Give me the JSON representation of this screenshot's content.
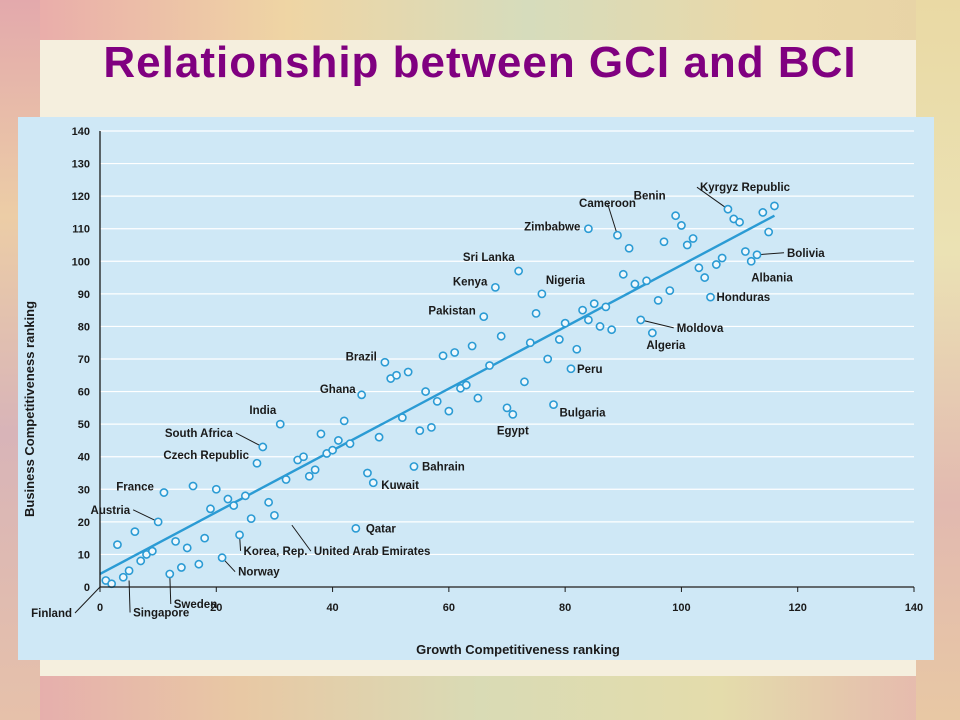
{
  "page": {
    "title": "Relationship between GCI and BCI"
  },
  "colors": {
    "title": "#800080",
    "plot_background": "#cfe8f6",
    "gridline": "#ffffff",
    "marker": "#2b9bd4",
    "trendline": "#2b9bd4",
    "text": "#1a1a1a"
  },
  "chart_data": {
    "type": "scatter",
    "title": "",
    "xlabel": "Growth Competitiveness ranking",
    "ylabel": "Business Competitiveness ranking",
    "xlim": [
      0,
      140
    ],
    "ylim": [
      0,
      140
    ],
    "xticks": [
      0,
      20,
      40,
      60,
      80,
      100,
      120,
      140
    ],
    "yticks": [
      0,
      10,
      20,
      30,
      40,
      50,
      60,
      70,
      80,
      90,
      100,
      110,
      120,
      130,
      140
    ],
    "grid": "horizontal",
    "legend": "none",
    "trendline": {
      "x": [
        0,
        116
      ],
      "y": [
        4,
        114
      ]
    },
    "points": [
      [
        1,
        2
      ],
      [
        2,
        1
      ],
      [
        3,
        13
      ],
      [
        4,
        3
      ],
      [
        5,
        5
      ],
      [
        6,
        17
      ],
      [
        7,
        8
      ],
      [
        8,
        10
      ],
      [
        9,
        11
      ],
      [
        10,
        20
      ],
      [
        11,
        29
      ],
      [
        12,
        4
      ],
      [
        13,
        14
      ],
      [
        14,
        6
      ],
      [
        15,
        12
      ],
      [
        16,
        31
      ],
      [
        17,
        7
      ],
      [
        18,
        15
      ],
      [
        19,
        24
      ],
      [
        20,
        30
      ],
      [
        21,
        9
      ],
      [
        22,
        27
      ],
      [
        23,
        25
      ],
      [
        24,
        16
      ],
      [
        25,
        28
      ],
      [
        26,
        21
      ],
      [
        27,
        38
      ],
      [
        28,
        43
      ],
      [
        29,
        26
      ],
      [
        30,
        22
      ],
      [
        31,
        50
      ],
      [
        32,
        33
      ],
      [
        34,
        39
      ],
      [
        35,
        40
      ],
      [
        36,
        34
      ],
      [
        37,
        36
      ],
      [
        38,
        47
      ],
      [
        39,
        41
      ],
      [
        40,
        42
      ],
      [
        41,
        45
      ],
      [
        42,
        51
      ],
      [
        43,
        44
      ],
      [
        44,
        18
      ],
      [
        45,
        59
      ],
      [
        46,
        35
      ],
      [
        47,
        32
      ],
      [
        48,
        46
      ],
      [
        49,
        69
      ],
      [
        50,
        64
      ],
      [
        51,
        65
      ],
      [
        52,
        52
      ],
      [
        53,
        66
      ],
      [
        54,
        37
      ],
      [
        55,
        48
      ],
      [
        56,
        60
      ],
      [
        57,
        49
      ],
      [
        58,
        57
      ],
      [
        59,
        71
      ],
      [
        60,
        54
      ],
      [
        61,
        72
      ],
      [
        62,
        61
      ],
      [
        63,
        62
      ],
      [
        64,
        74
      ],
      [
        65,
        58
      ],
      [
        66,
        83
      ],
      [
        67,
        68
      ],
      [
        68,
        92
      ],
      [
        69,
        77
      ],
      [
        70,
        55
      ],
      [
        71,
        53
      ],
      [
        72,
        97
      ],
      [
        73,
        63
      ],
      [
        74,
        75
      ],
      [
        75,
        84
      ],
      [
        76,
        90
      ],
      [
        77,
        70
      ],
      [
        78,
        56
      ],
      [
        79,
        76
      ],
      [
        80,
        81
      ],
      [
        81,
        67
      ],
      [
        82,
        73
      ],
      [
        83,
        85
      ],
      [
        84,
        82
      ],
      [
        85,
        87
      ],
      [
        86,
        80
      ],
      [
        87,
        86
      ],
      [
        88,
        79
      ],
      [
        89,
        108
      ],
      [
        90,
        96
      ],
      [
        91,
        104
      ],
      [
        92,
        93
      ],
      [
        93,
        82
      ],
      [
        94,
        94
      ],
      [
        95,
        78
      ],
      [
        96,
        88
      ],
      [
        97,
        106
      ],
      [
        98,
        91
      ],
      [
        99,
        114
      ],
      [
        100,
        111
      ],
      [
        101,
        105
      ],
      [
        102,
        107
      ],
      [
        103,
        98
      ],
      [
        104,
        95
      ],
      [
        105,
        89
      ],
      [
        106,
        99
      ],
      [
        107,
        101
      ],
      [
        108,
        116
      ],
      [
        109,
        113
      ],
      [
        110,
        112
      ],
      [
        111,
        103
      ],
      [
        112,
        100
      ],
      [
        113,
        102
      ],
      [
        114,
        115
      ],
      [
        115,
        109
      ],
      [
        116,
        117
      ],
      [
        84,
        110
      ]
    ],
    "annotations": [
      {
        "text": "Finland",
        "point": [
          0,
          0
        ]
      },
      {
        "text": "Singapore",
        "point": [
          5,
          2
        ]
      },
      {
        "text": "Sweden",
        "point": [
          12,
          4
        ]
      },
      {
        "text": "Norway",
        "point": [
          21,
          9
        ]
      },
      {
        "text": "Korea, Rep.",
        "point": [
          24,
          16
        ]
      },
      {
        "text": "United Arab Emirates",
        "point": [
          33,
          19
        ]
      },
      {
        "text": "Qatar",
        "point": [
          44,
          18
        ]
      },
      {
        "text": "Kuwait",
        "point": [
          47,
          32
        ]
      },
      {
        "text": "Bahrain",
        "point": [
          54,
          37
        ]
      },
      {
        "text": "Austria",
        "point": [
          10,
          20
        ]
      },
      {
        "text": "France",
        "point": [
          11,
          29
        ]
      },
      {
        "text": "Czech Republic",
        "point": [
          27,
          38
        ]
      },
      {
        "text": "South Africa",
        "point": [
          28,
          43
        ]
      },
      {
        "text": "India",
        "point": [
          31,
          50
        ]
      },
      {
        "text": "Ghana",
        "point": [
          45,
          59
        ]
      },
      {
        "text": "Brazil",
        "point": [
          49,
          69
        ]
      },
      {
        "text": "Pakistan",
        "point": [
          66,
          83
        ]
      },
      {
        "text": "Kenya",
        "point": [
          68,
          92
        ]
      },
      {
        "text": "Sri Lanka",
        "point": [
          72,
          97
        ]
      },
      {
        "text": "Nigeria",
        "point": [
          76,
          90
        ]
      },
      {
        "text": "Zimbabwe",
        "point": [
          84,
          110
        ]
      },
      {
        "text": "Cameroon",
        "point": [
          89,
          108
        ]
      },
      {
        "text": "Benin",
        "point": [
          99,
          114
        ]
      },
      {
        "text": "Kyrgyz Republic",
        "point": [
          108,
          116
        ]
      },
      {
        "text": "Bolivia",
        "point": [
          113,
          102
        ]
      },
      {
        "text": "Albania",
        "point": [
          112,
          100
        ]
      },
      {
        "text": "Honduras",
        "point": [
          105,
          89
        ]
      },
      {
        "text": "Moldova",
        "point": [
          93,
          82
        ]
      },
      {
        "text": "Algeria",
        "point": [
          95,
          78
        ]
      },
      {
        "text": "Peru",
        "point": [
          81,
          67
        ]
      },
      {
        "text": "Bulgaria",
        "point": [
          78,
          56
        ]
      },
      {
        "text": "Egypt",
        "point": [
          71,
          53
        ]
      }
    ]
  }
}
